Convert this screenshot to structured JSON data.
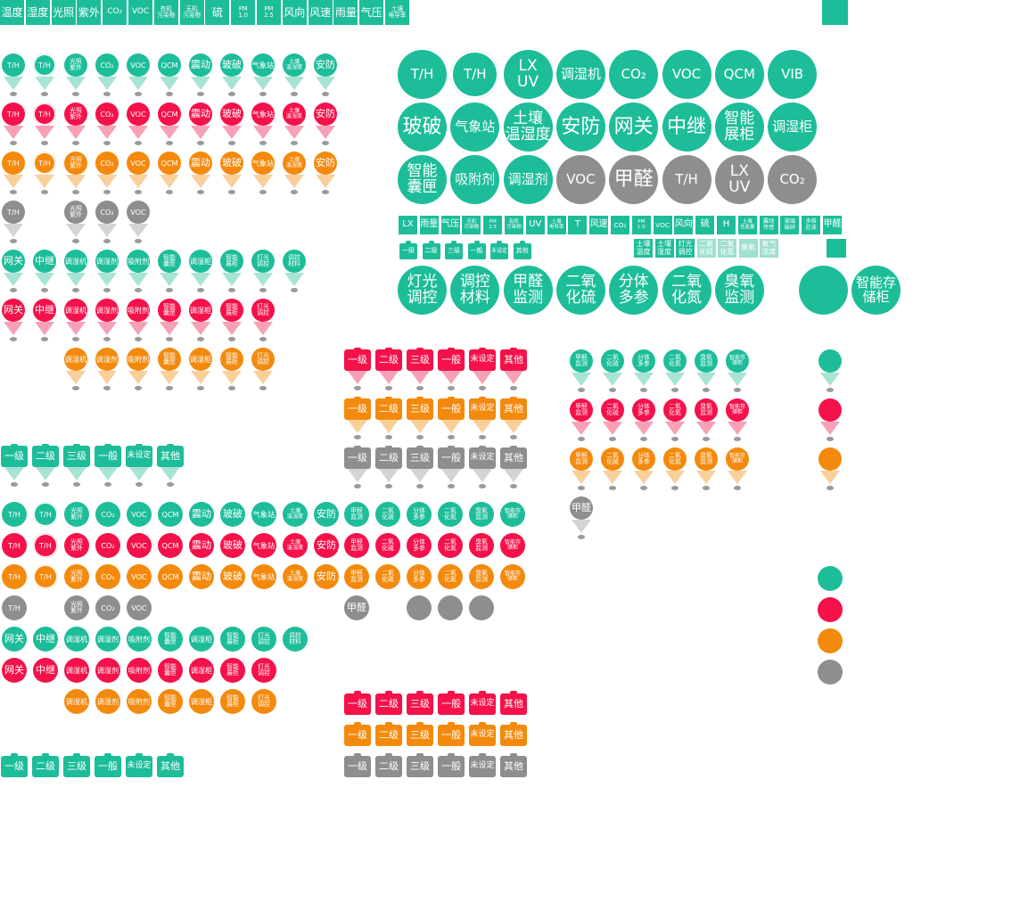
{
  "colors": {
    "teal": "#1dbd9a",
    "red": "#f5114a",
    "orange": "#f38a0d",
    "gray": "#8e8e8e",
    "tail_teal": "#a7e4d6",
    "tail_red": "#f8a0b6",
    "tail_orange": "#f9cf9a",
    "tail_gray": "#d4d4d4"
  },
  "top_strip": [
    "温度",
    "湿度",
    "光照",
    "紫外",
    "CO₂",
    "VOC",
    "有机\n污染物",
    "无机\n污染物",
    "硫",
    "PM\n1.0",
    "PM\n2.5",
    "风向",
    "风速",
    "雨量",
    "气压",
    "土壤\n电导率"
  ],
  "big_rows": [
    [
      "T/H",
      "T/H",
      "LX\nUV",
      "调湿机",
      "CO₂",
      "VOC",
      "QCM",
      "VIB"
    ],
    [
      "玻破",
      "气象站",
      "土壤\n温湿度",
      "安防",
      "网关",
      "中继",
      "智能\n展柜",
      "调湿柜"
    ],
    [
      "智能\n囊匣",
      "吸附剂",
      "调湿剂",
      "VOC",
      "甲醛",
      "T/H",
      "LX\nUV",
      "CO₂"
    ]
  ],
  "mid_strip": [
    "LX",
    "雨量",
    "气压",
    "无机\n污染物",
    "PM\n2.5",
    "有机\n污染物",
    "UV",
    "土壤\n电导率",
    "T",
    "风速",
    "CO₂",
    "PM\n1.0",
    "VOC",
    "风向",
    "硫",
    "H",
    "土壤\n含盐量",
    "震动\n传感",
    "玻璃\n破碎",
    "多维\n驻波",
    "甲醛"
  ],
  "mini_bags": [
    "一级",
    "二级",
    "三级",
    "一般",
    "未设定",
    "其他"
  ],
  "small_strip_2": [
    "土壤\n温度",
    "土壤\n湿度",
    "灯光\n调控",
    "二氧\n化硫",
    "二氧\n化氮",
    "臭氧",
    "氧气\n浓度"
  ],
  "big_row_4": [
    "灯光\n调控",
    "调控\n材料",
    "甲醛\n监测",
    "二氧\n化硫",
    "分体\n多参",
    "二氧\n化氮",
    "臭氧\n监测"
  ],
  "big_single": "智能存\n储柜",
  "pin_row_a": [
    "T/H",
    "T/H",
    "光照\n紫外",
    "CO₂",
    "VOC",
    "QCM",
    "震动",
    "玻破",
    "气象站",
    "土壤\n温湿度",
    "安防"
  ],
  "pin_row_gray_a": [
    "T/H",
    "",
    "光照\n紫外",
    "CO₂",
    "VOC"
  ],
  "pin_row_b": [
    "网关",
    "中继",
    "调湿机",
    "调湿剂",
    "吸附剂",
    "智能\n囊匣",
    "调湿柜",
    "智能\n展柜",
    "灯光\n调控",
    "调控\n材料"
  ],
  "pin_row_b_orange": [
    "",
    "",
    "调湿机",
    "调湿剂",
    "吸附剂",
    "智能\n囊匣",
    "调湿柜",
    "智能\n展柜",
    "灯光\n调控"
  ],
  "level_labels": [
    "一级",
    "二级",
    "三级",
    "一般",
    "未设定",
    "其他"
  ],
  "pin_row_c": [
    "甲醛\n监测",
    "二氧\n化硫",
    "分体\n多参",
    "二氧\n化氮",
    "臭氧\n监测",
    "智能存\n储柜"
  ],
  "pin_formaldehyde": "甲醛",
  "plain_row_d": [
    "甲醛\n监测",
    "二氧\n化硫",
    "分体\n多参",
    "二氧\n化氮",
    "臭氧\n监测",
    "智能存\n储柜"
  ],
  "plain_gray_formaldehyde": "甲醛"
}
